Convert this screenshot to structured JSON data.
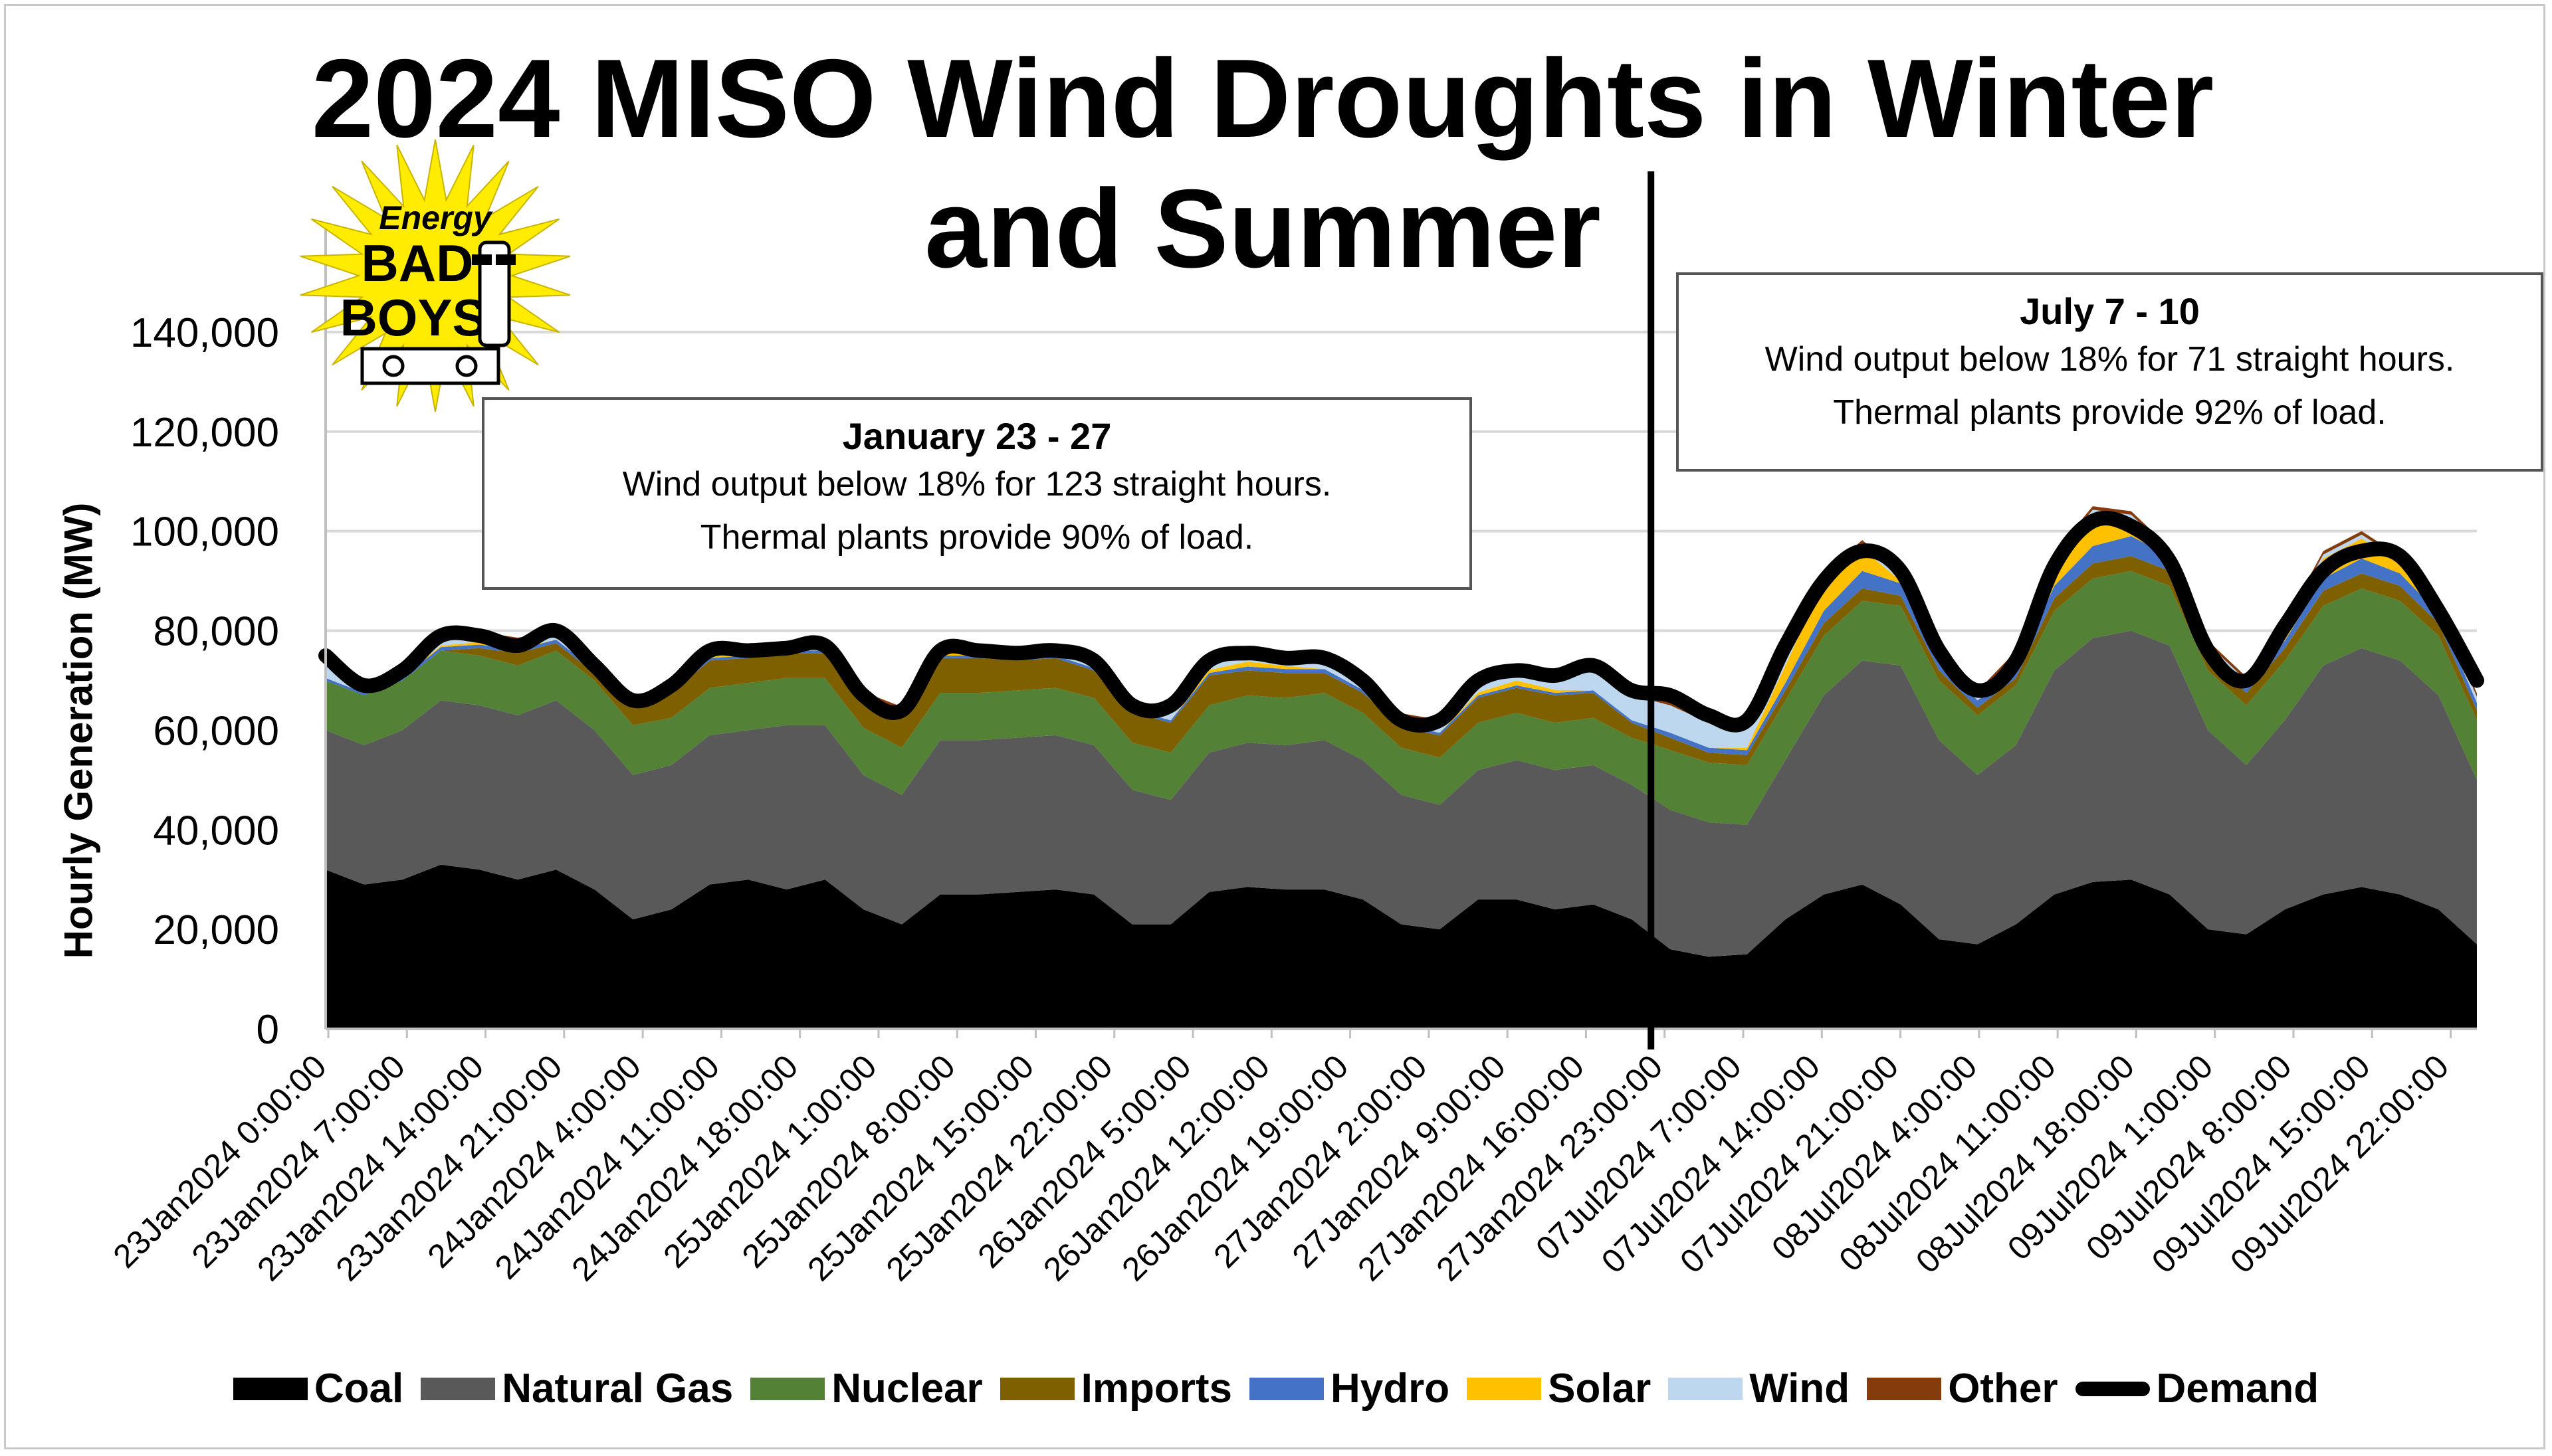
{
  "chart_data": {
    "type": "area",
    "title": "2024 MISO Wind Droughts in Winter and Summer",
    "ylabel": "Hourly Generation (MW)",
    "ylim": [
      0,
      160000
    ],
    "yticks": [
      "0",
      "20,000",
      "40,000",
      "60,000",
      "80,000",
      "100,000",
      "120,000",
      "140,000"
    ],
    "ytick_values": [
      0,
      20000,
      40000,
      60000,
      80000,
      100000,
      120000,
      140000
    ],
    "grid": true,
    "legend_position": "bottom",
    "x_tick_labels": [
      "23Jan2024 0:00:00",
      "23Jan2024 7:00:00",
      "23Jan2024 14:00:00",
      "23Jan2024 21:00:00",
      "24Jan2024 4:00:00",
      "24Jan2024 11:00:00",
      "24Jan2024 18:00:00",
      "25Jan2024 1:00:00",
      "25Jan2024 8:00:00",
      "25Jan2024 15:00:00",
      "25Jan2024 22:00:00",
      "26Jan2024 5:00:00",
      "26Jan2024 12:00:00",
      "26Jan2024 19:00:00",
      "27Jan2024 2:00:00",
      "27Jan2024 9:00:00",
      "27Jan2024 16:00:00",
      "27Jan2024 23:00:00",
      "07Jul2024 7:00:00",
      "07Jul2024 14:00:00",
      "07Jul2024 21:00:00",
      "08Jul2024 4:00:00",
      "08Jul2024 11:00:00",
      "08Jul2024 18:00:00",
      "09Jul2024 1:00:00",
      "09Jul2024 8:00:00",
      "09Jul2024 15:00:00",
      "09Jul2024 22:00:00"
    ],
    "x": [
      "23Jan2024 0:00:00",
      "23Jan2024 3:30:00",
      "23Jan2024 7:00:00",
      "23Jan2024 10:30:00",
      "23Jan2024 14:00:00",
      "23Jan2024 17:30:00",
      "23Jan2024 21:00:00",
      "24Jan2024 0:30:00",
      "24Jan2024 4:00:00",
      "24Jan2024 7:30:00",
      "24Jan2024 11:00:00",
      "24Jan2024 14:30:00",
      "24Jan2024 18:00:00",
      "24Jan2024 21:30:00",
      "25Jan2024 1:00:00",
      "25Jan2024 4:30:00",
      "25Jan2024 8:00:00",
      "25Jan2024 11:30:00",
      "25Jan2024 15:00:00",
      "25Jan2024 18:30:00",
      "25Jan2024 22:00:00",
      "26Jan2024 1:30:00",
      "26Jan2024 5:00:00",
      "26Jan2024 8:30:00",
      "26Jan2024 12:00:00",
      "26Jan2024 15:30:00",
      "26Jan2024 19:00:00",
      "26Jan2024 22:30:00",
      "27Jan2024 2:00:00",
      "27Jan2024 5:30:00",
      "27Jan2024 9:00:00",
      "27Jan2024 12:30:00",
      "27Jan2024 16:00:00",
      "27Jan2024 19:30:00",
      "27Jan2024 23:00:00",
      "07Jul2024 0:00:00",
      "07Jul2024 3:30:00",
      "07Jul2024 7:00:00",
      "07Jul2024 10:30:00",
      "07Jul2024 14:00:00",
      "07Jul2024 17:30:00",
      "07Jul2024 21:00:00",
      "08Jul2024 0:30:00",
      "08Jul2024 4:00:00",
      "08Jul2024 7:30:00",
      "08Jul2024 11:00:00",
      "08Jul2024 14:30:00",
      "08Jul2024 18:00:00",
      "08Jul2024 21:30:00",
      "09Jul2024 1:00:00",
      "09Jul2024 4:30:00",
      "09Jul2024 8:00:00",
      "09Jul2024 11:30:00",
      "09Jul2024 15:00:00",
      "09Jul2024 18:30:00",
      "09Jul2024 22:00:00",
      "10Jul2024 0:00:00"
    ],
    "series": [
      {
        "name": "Coal",
        "color": "#000000",
        "values": [
          32000,
          29000,
          30000,
          33000,
          32000,
          30000,
          32000,
          28000,
          22000,
          24000,
          29000,
          30000,
          28000,
          30000,
          24000,
          21000,
          27000,
          27000,
          27500,
          28000,
          27000,
          21000,
          21000,
          27500,
          28500,
          28000,
          28000,
          26000,
          21000,
          20000,
          26000,
          26000,
          24000,
          25000,
          22000,
          16000,
          14500,
          15000,
          22000,
          27000,
          29000,
          25000,
          18000,
          17000,
          21000,
          27000,
          29500,
          30000,
          27000,
          20000,
          19000,
          24000,
          27000,
          28500,
          27000,
          24000,
          17000
        ]
      },
      {
        "name": "Natural Gas",
        "color": "#595959",
        "values": [
          28000,
          28000,
          30000,
          33000,
          33000,
          33000,
          34000,
          32000,
          29000,
          29000,
          30000,
          30000,
          33000,
          31000,
          27000,
          26000,
          31000,
          31000,
          31000,
          31000,
          30000,
          27000,
          25000,
          28000,
          29000,
          29000,
          30000,
          28000,
          26000,
          25000,
          26000,
          28000,
          28000,
          28000,
          27000,
          28000,
          27000,
          26000,
          32000,
          40000,
          45000,
          48000,
          40000,
          34000,
          36000,
          45000,
          49000,
          50000,
          50000,
          40000,
          34000,
          38000,
          46000,
          48000,
          47000,
          43000,
          33000
        ]
      },
      {
        "name": "Nuclear",
        "color": "#538135",
        "values": [
          10000,
          10000,
          10000,
          10000,
          10000,
          10000,
          10000,
          10000,
          10000,
          9500,
          9500,
          9500,
          9500,
          9500,
          9500,
          9500,
          9500,
          9500,
          9500,
          9500,
          9500,
          9500,
          9500,
          9500,
          9500,
          9500,
          9500,
          9500,
          9500,
          9500,
          9500,
          9500,
          9500,
          9500,
          9500,
          12000,
          12000,
          12000,
          12000,
          12000,
          12000,
          12000,
          12000,
          12000,
          12000,
          12000,
          12000,
          12000,
          12000,
          12000,
          12000,
          12000,
          12000,
          12000,
          12000,
          12000,
          12000
        ]
      },
      {
        "name": "Imports",
        "color": "#7f6000",
        "values": [
          0,
          0,
          0,
          0,
          1500,
          2500,
          1500,
          1500,
          3500,
          5000,
          5500,
          5000,
          5000,
          5000,
          5500,
          6500,
          7000,
          7000,
          6000,
          6000,
          5500,
          6000,
          6000,
          6000,
          5000,
          5000,
          4000,
          4000,
          4000,
          4500,
          5000,
          5000,
          5500,
          5000,
          3000,
          2500,
          2000,
          2000,
          2000,
          2500,
          2500,
          2000,
          2000,
          1500,
          1500,
          2500,
          3000,
          3000,
          3000,
          2500,
          2500,
          2500,
          3000,
          3000,
          3000,
          2500,
          2000
        ]
      },
      {
        "name": "Hydro",
        "color": "#4472c4",
        "values": [
          500,
          500,
          600,
          700,
          700,
          700,
          700,
          600,
          500,
          500,
          500,
          500,
          500,
          500,
          500,
          500,
          500,
          500,
          500,
          500,
          500,
          500,
          500,
          500,
          800,
          800,
          800,
          600,
          500,
          500,
          500,
          500,
          500,
          500,
          500,
          1000,
          1000,
          1000,
          1500,
          2500,
          3500,
          2500,
          2000,
          1500,
          1500,
          2500,
          3500,
          4000,
          3000,
          2000,
          1500,
          1500,
          2500,
          3000,
          2500,
          2000,
          1500
        ]
      },
      {
        "name": "Solar",
        "color": "#ffc000",
        "values": [
          0,
          0,
          0,
          300,
          500,
          300,
          0,
          0,
          0,
          300,
          500,
          300,
          0,
          0,
          0,
          0,
          500,
          800,
          500,
          0,
          0,
          0,
          0,
          600,
          1000,
          600,
          0,
          0,
          0,
          0,
          600,
          1000,
          600,
          0,
          0,
          0,
          0,
          500,
          3500,
          6000,
          4500,
          500,
          0,
          0,
          2000,
          5000,
          6500,
          3500,
          200,
          0,
          0,
          2000,
          4000,
          4000,
          2000,
          200,
          0
        ]
      },
      {
        "name": "Wind",
        "color": "#bdd7ee",
        "values": [
          4500,
          1500,
          1500,
          1800,
          1500,
          1500,
          1000,
          600,
          500,
          500,
          600,
          600,
          700,
          600,
          600,
          600,
          800,
          900,
          800,
          700,
          1000,
          1500,
          1800,
          2200,
          2300,
          1800,
          1500,
          1500,
          1800,
          2000,
          2000,
          2200,
          3000,
          4500,
          5000,
          5500,
          5000,
          4500,
          1500,
          1000,
          1000,
          1000,
          1000,
          1200,
          1200,
          1000,
          800,
          800,
          800,
          800,
          1000,
          1000,
          800,
          800,
          800,
          1000,
          1200
        ]
      },
      {
        "name": "Other",
        "color": "#843c0c",
        "values": [
          600,
          600,
          600,
          600,
          600,
          600,
          600,
          600,
          600,
          600,
          600,
          600,
          600,
          600,
          600,
          600,
          600,
          600,
          600,
          600,
          600,
          600,
          600,
          600,
          600,
          600,
          600,
          600,
          600,
          600,
          600,
          600,
          600,
          600,
          600,
          700,
          700,
          700,
          700,
          700,
          700,
          700,
          700,
          700,
          700,
          700,
          700,
          700,
          700,
          700,
          700,
          700,
          700,
          700,
          700,
          700,
          700
        ]
      }
    ],
    "demand": {
      "name": "Demand",
      "color": "#000000",
      "values": [
        75000,
        69000,
        72000,
        79000,
        79000,
        77000,
        80000,
        73000,
        66000,
        69000,
        76000,
        76000,
        76500,
        77000,
        67000,
        64000,
        76000,
        76000,
        75500,
        76000,
        74000,
        65000,
        65000,
        74000,
        75500,
        74500,
        74500,
        70000,
        62000,
        62000,
        70000,
        72000,
        71000,
        73000,
        68000,
        67000,
        63000,
        62000,
        77000,
        90000,
        96000,
        92000,
        76000,
        68000,
        74000,
        93000,
        102000,
        101000,
        94000,
        76000,
        70000,
        81000,
        92000,
        96000,
        95000,
        84000,
        70000
      ]
    },
    "divider_after": "27Jan2024 23:00:00"
  },
  "legend": [
    {
      "label": "Coal",
      "color": "#000000",
      "kind": "box"
    },
    {
      "label": "Natural Gas",
      "color": "#595959",
      "kind": "box"
    },
    {
      "label": "Nuclear",
      "color": "#538135",
      "kind": "box"
    },
    {
      "label": "Imports",
      "color": "#7f6000",
      "kind": "box"
    },
    {
      "label": "Hydro",
      "color": "#4472c4",
      "kind": "box"
    },
    {
      "label": "Solar",
      "color": "#ffc000",
      "kind": "box"
    },
    {
      "label": "Wind",
      "color": "#bdd7ee",
      "kind": "box"
    },
    {
      "label": "Other",
      "color": "#843c0c",
      "kind": "box"
    },
    {
      "label": "Demand",
      "color": "#000000",
      "kind": "line"
    }
  ],
  "annotations": {
    "winter": {
      "heading": "January 23 - 27",
      "line1": "Wind output below 18% for 123 straight hours.",
      "line2": "Thermal plants provide 90% of load."
    },
    "summer": {
      "heading": "July 7 - 10",
      "line1": "Wind output below 18% for 71 straight hours.",
      "line2": "Thermal plants provide 92% of load."
    }
  },
  "logo": {
    "line1": "Energy",
    "line2": "BAD",
    "line3": "BOYS",
    "color": "#ffec00"
  }
}
